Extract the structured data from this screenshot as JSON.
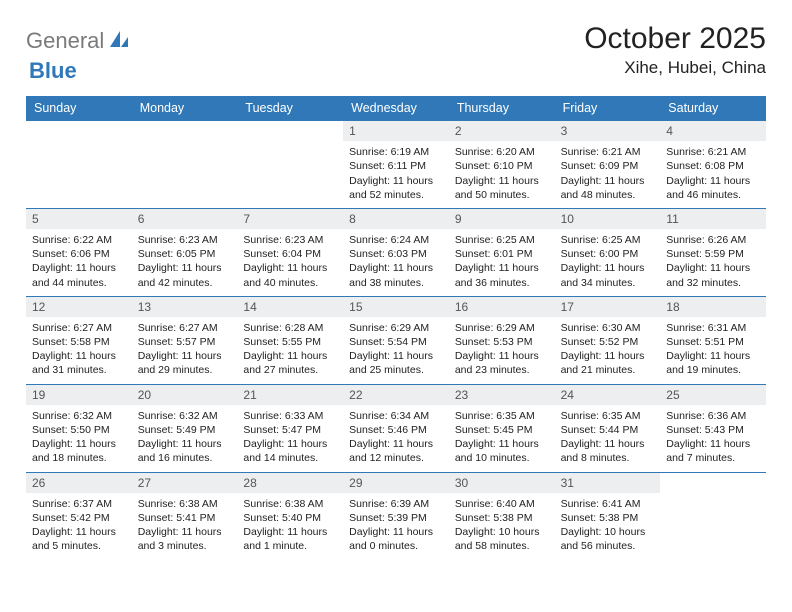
{
  "logo": {
    "text1": "General",
    "text2": "Blue"
  },
  "title": "October 2025",
  "location": "Xihe, Hubei, China",
  "colors": {
    "accent": "#3078b8",
    "weekday_bg": "#3078b8",
    "weekday_text": "#ffffff",
    "daynum_bg": "#eceef0",
    "rule": "#3078b8",
    "logo_gray": "#7a7a7a"
  },
  "weekdays": [
    "Sunday",
    "Monday",
    "Tuesday",
    "Wednesday",
    "Thursday",
    "Friday",
    "Saturday"
  ],
  "weeks": [
    [
      {
        "n": "",
        "sr": "",
        "ss": "",
        "dl": ""
      },
      {
        "n": "",
        "sr": "",
        "ss": "",
        "dl": ""
      },
      {
        "n": "",
        "sr": "",
        "ss": "",
        "dl": ""
      },
      {
        "n": "1",
        "sr": "Sunrise: 6:19 AM",
        "ss": "Sunset: 6:11 PM",
        "dl": "Daylight: 11 hours and 52 minutes."
      },
      {
        "n": "2",
        "sr": "Sunrise: 6:20 AM",
        "ss": "Sunset: 6:10 PM",
        "dl": "Daylight: 11 hours and 50 minutes."
      },
      {
        "n": "3",
        "sr": "Sunrise: 6:21 AM",
        "ss": "Sunset: 6:09 PM",
        "dl": "Daylight: 11 hours and 48 minutes."
      },
      {
        "n": "4",
        "sr": "Sunrise: 6:21 AM",
        "ss": "Sunset: 6:08 PM",
        "dl": "Daylight: 11 hours and 46 minutes."
      }
    ],
    [
      {
        "n": "5",
        "sr": "Sunrise: 6:22 AM",
        "ss": "Sunset: 6:06 PM",
        "dl": "Daylight: 11 hours and 44 minutes."
      },
      {
        "n": "6",
        "sr": "Sunrise: 6:23 AM",
        "ss": "Sunset: 6:05 PM",
        "dl": "Daylight: 11 hours and 42 minutes."
      },
      {
        "n": "7",
        "sr": "Sunrise: 6:23 AM",
        "ss": "Sunset: 6:04 PM",
        "dl": "Daylight: 11 hours and 40 minutes."
      },
      {
        "n": "8",
        "sr": "Sunrise: 6:24 AM",
        "ss": "Sunset: 6:03 PM",
        "dl": "Daylight: 11 hours and 38 minutes."
      },
      {
        "n": "9",
        "sr": "Sunrise: 6:25 AM",
        "ss": "Sunset: 6:01 PM",
        "dl": "Daylight: 11 hours and 36 minutes."
      },
      {
        "n": "10",
        "sr": "Sunrise: 6:25 AM",
        "ss": "Sunset: 6:00 PM",
        "dl": "Daylight: 11 hours and 34 minutes."
      },
      {
        "n": "11",
        "sr": "Sunrise: 6:26 AM",
        "ss": "Sunset: 5:59 PM",
        "dl": "Daylight: 11 hours and 32 minutes."
      }
    ],
    [
      {
        "n": "12",
        "sr": "Sunrise: 6:27 AM",
        "ss": "Sunset: 5:58 PM",
        "dl": "Daylight: 11 hours and 31 minutes."
      },
      {
        "n": "13",
        "sr": "Sunrise: 6:27 AM",
        "ss": "Sunset: 5:57 PM",
        "dl": "Daylight: 11 hours and 29 minutes."
      },
      {
        "n": "14",
        "sr": "Sunrise: 6:28 AM",
        "ss": "Sunset: 5:55 PM",
        "dl": "Daylight: 11 hours and 27 minutes."
      },
      {
        "n": "15",
        "sr": "Sunrise: 6:29 AM",
        "ss": "Sunset: 5:54 PM",
        "dl": "Daylight: 11 hours and 25 minutes."
      },
      {
        "n": "16",
        "sr": "Sunrise: 6:29 AM",
        "ss": "Sunset: 5:53 PM",
        "dl": "Daylight: 11 hours and 23 minutes."
      },
      {
        "n": "17",
        "sr": "Sunrise: 6:30 AM",
        "ss": "Sunset: 5:52 PM",
        "dl": "Daylight: 11 hours and 21 minutes."
      },
      {
        "n": "18",
        "sr": "Sunrise: 6:31 AM",
        "ss": "Sunset: 5:51 PM",
        "dl": "Daylight: 11 hours and 19 minutes."
      }
    ],
    [
      {
        "n": "19",
        "sr": "Sunrise: 6:32 AM",
        "ss": "Sunset: 5:50 PM",
        "dl": "Daylight: 11 hours and 18 minutes."
      },
      {
        "n": "20",
        "sr": "Sunrise: 6:32 AM",
        "ss": "Sunset: 5:49 PM",
        "dl": "Daylight: 11 hours and 16 minutes."
      },
      {
        "n": "21",
        "sr": "Sunrise: 6:33 AM",
        "ss": "Sunset: 5:47 PM",
        "dl": "Daylight: 11 hours and 14 minutes."
      },
      {
        "n": "22",
        "sr": "Sunrise: 6:34 AM",
        "ss": "Sunset: 5:46 PM",
        "dl": "Daylight: 11 hours and 12 minutes."
      },
      {
        "n": "23",
        "sr": "Sunrise: 6:35 AM",
        "ss": "Sunset: 5:45 PM",
        "dl": "Daylight: 11 hours and 10 minutes."
      },
      {
        "n": "24",
        "sr": "Sunrise: 6:35 AM",
        "ss": "Sunset: 5:44 PM",
        "dl": "Daylight: 11 hours and 8 minutes."
      },
      {
        "n": "25",
        "sr": "Sunrise: 6:36 AM",
        "ss": "Sunset: 5:43 PM",
        "dl": "Daylight: 11 hours and 7 minutes."
      }
    ],
    [
      {
        "n": "26",
        "sr": "Sunrise: 6:37 AM",
        "ss": "Sunset: 5:42 PM",
        "dl": "Daylight: 11 hours and 5 minutes."
      },
      {
        "n": "27",
        "sr": "Sunrise: 6:38 AM",
        "ss": "Sunset: 5:41 PM",
        "dl": "Daylight: 11 hours and 3 minutes."
      },
      {
        "n": "28",
        "sr": "Sunrise: 6:38 AM",
        "ss": "Sunset: 5:40 PM",
        "dl": "Daylight: 11 hours and 1 minute."
      },
      {
        "n": "29",
        "sr": "Sunrise: 6:39 AM",
        "ss": "Sunset: 5:39 PM",
        "dl": "Daylight: 11 hours and 0 minutes."
      },
      {
        "n": "30",
        "sr": "Sunrise: 6:40 AM",
        "ss": "Sunset: 5:38 PM",
        "dl": "Daylight: 10 hours and 58 minutes."
      },
      {
        "n": "31",
        "sr": "Sunrise: 6:41 AM",
        "ss": "Sunset: 5:38 PM",
        "dl": "Daylight: 10 hours and 56 minutes."
      },
      {
        "n": "",
        "sr": "",
        "ss": "",
        "dl": ""
      }
    ]
  ]
}
